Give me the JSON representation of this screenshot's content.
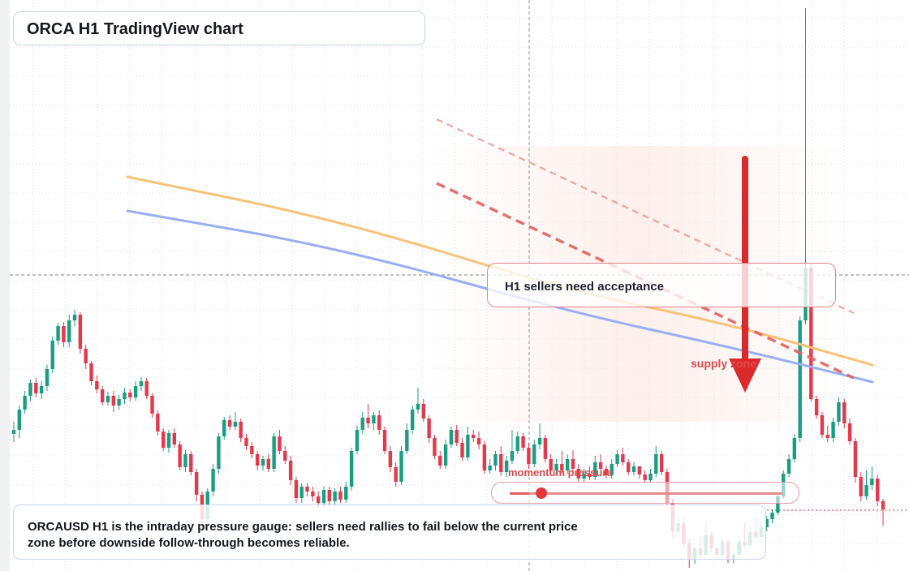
{
  "title": "ORCA H1 TradingView chart",
  "colors": {
    "up": "#1a9e82",
    "down": "#e5384b",
    "ema_fast": "#f7c27a",
    "ema_slow": "#98aff1",
    "resistance": "#e06060",
    "arrow": "#dc2a2a",
    "grid": "#d8dde6"
  },
  "annotations": {
    "acceptance": "H1 sellers need acceptance",
    "supply_zone": "supply zone",
    "momentum": "momentum pressure",
    "note": "ORCAUSD H1 is the intraday pressure gauge: sellers need rallies to fail below the current price zone before downside follow-through becomes reliable."
  },
  "momentum_pressure_level": 0.07,
  "chart_data": {
    "type": "candlestick",
    "symbol": "ORCAUSD",
    "timeframe": "H1",
    "title": "ORCA H1 TradingView chart",
    "xlabel": "",
    "ylabel": "",
    "grid": true,
    "y_range_px_scale_note": "",
    "candles": [
      [
        535,
        530,
        545,
        520
      ],
      [
        530,
        505,
        540,
        500
      ],
      [
        505,
        488,
        510,
        482
      ],
      [
        488,
        472,
        495,
        468
      ],
      [
        472,
        485,
        490,
        466
      ],
      [
        485,
        476,
        492,
        470
      ],
      [
        476,
        455,
        482,
        450
      ],
      [
        455,
        420,
        460,
        415
      ],
      [
        420,
        402,
        425,
        398
      ],
      [
        402,
        422,
        428,
        397
      ],
      [
        422,
        395,
        428,
        388
      ],
      [
        395,
        388,
        402,
        382
      ],
      [
        388,
        430,
        436,
        385
      ],
      [
        430,
        448,
        455,
        425
      ],
      [
        448,
        470,
        475,
        445
      ],
      [
        470,
        480,
        485,
        463
      ],
      [
        480,
        496,
        500,
        476
      ],
      [
        496,
        488,
        500,
        483
      ],
      [
        488,
        500,
        508,
        482
      ],
      [
        500,
        492,
        505,
        487
      ],
      [
        492,
        484,
        498,
        478
      ],
      [
        484,
        490,
        495,
        480
      ],
      [
        490,
        476,
        494,
        470
      ],
      [
        476,
        470,
        482,
        465
      ],
      [
        470,
        488,
        492,
        466
      ],
      [
        488,
        510,
        515,
        485
      ],
      [
        510,
        532,
        537,
        506
      ],
      [
        532,
        552,
        556,
        528
      ],
      [
        552,
        534,
        558,
        530
      ],
      [
        534,
        548,
        552,
        528
      ],
      [
        548,
        576,
        580,
        544
      ],
      [
        576,
        560,
        582,
        555
      ],
      [
        560,
        582,
        586,
        556
      ],
      [
        582,
        610,
        618,
        578
      ],
      [
        610,
        640,
        650,
        606
      ],
      [
        640,
        606,
        645,
        602
      ],
      [
        606,
        578,
        612,
        572
      ],
      [
        578,
        538,
        584,
        534
      ],
      [
        538,
        518,
        542,
        514
      ],
      [
        518,
        526,
        530,
        512
      ],
      [
        526,
        520,
        530,
        508
      ],
      [
        520,
        540,
        545,
        516
      ],
      [
        540,
        550,
        555,
        535
      ],
      [
        550,
        560,
        565,
        545
      ],
      [
        560,
        574,
        580,
        556
      ],
      [
        574,
        566,
        580,
        562
      ],
      [
        566,
        578,
        582,
        560
      ],
      [
        578,
        538,
        582,
        534
      ],
      [
        538,
        556,
        560,
        530
      ],
      [
        556,
        568,
        572,
        550
      ],
      [
        568,
        592,
        598,
        562
      ],
      [
        592,
        614,
        620,
        588
      ],
      [
        614,
        600,
        620,
        596
      ],
      [
        600,
        606,
        612,
        596
      ],
      [
        606,
        612,
        618,
        600
      ],
      [
        612,
        620,
        626,
        606
      ],
      [
        620,
        604,
        626,
        600
      ],
      [
        604,
        618,
        624,
        600
      ],
      [
        618,
        606,
        622,
        602
      ],
      [
        606,
        616,
        620,
        600
      ],
      [
        616,
        600,
        620,
        594
      ],
      [
        600,
        556,
        605,
        552
      ],
      [
        556,
        530,
        560,
        525
      ],
      [
        530,
        515,
        535,
        508
      ],
      [
        515,
        522,
        528,
        498
      ],
      [
        522,
        512,
        530,
        508
      ],
      [
        512,
        530,
        536,
        506
      ],
      [
        530,
        556,
        560,
        526
      ],
      [
        556,
        576,
        582,
        550
      ],
      [
        576,
        594,
        600,
        570
      ],
      [
        594,
        556,
        598,
        550
      ],
      [
        556,
        530,
        560,
        522
      ],
      [
        530,
        505,
        535,
        500
      ],
      [
        505,
        498,
        510,
        478
      ],
      [
        498,
        516,
        520,
        492
      ],
      [
        516,
        540,
        546,
        512
      ],
      [
        540,
        562,
        566,
        536
      ],
      [
        562,
        574,
        578,
        556
      ],
      [
        574,
        548,
        578,
        542
      ],
      [
        548,
        530,
        552,
        526
      ],
      [
        530,
        546,
        550,
        524
      ],
      [
        546,
        564,
        568,
        540
      ],
      [
        564,
        536,
        568,
        526
      ],
      [
        536,
        540,
        545,
        530
      ],
      [
        540,
        548,
        554,
        532
      ],
      [
        548,
        580,
        584,
        544
      ],
      [
        580,
        574,
        584,
        566
      ],
      [
        574,
        560,
        580,
        556
      ],
      [
        560,
        582,
        586,
        550
      ],
      [
        582,
        568,
        588,
        562
      ],
      [
        568,
        556,
        572,
        530
      ],
      [
        556,
        538,
        560,
        532
      ],
      [
        538,
        552,
        556,
        534
      ],
      [
        552,
        572,
        578,
        546
      ],
      [
        572,
        548,
        576,
        542
      ],
      [
        548,
        540,
        554,
        522
      ],
      [
        540,
        566,
        570,
        536
      ],
      [
        566,
        580,
        584,
        560
      ],
      [
        580,
        572,
        586,
        566
      ],
      [
        572,
        580,
        584,
        556
      ],
      [
        580,
        566,
        584,
        560
      ],
      [
        566,
        578,
        582,
        555
      ],
      [
        578,
        590,
        594,
        572
      ],
      [
        590,
        584,
        594,
        578
      ],
      [
        584,
        588,
        592,
        575
      ],
      [
        588,
        570,
        592,
        562
      ],
      [
        570,
        578,
        582,
        560
      ],
      [
        578,
        586,
        590,
        574
      ],
      [
        586,
        572,
        590,
        566
      ],
      [
        572,
        560,
        576,
        555
      ],
      [
        560,
        570,
        574,
        552
      ],
      [
        570,
        582,
        586,
        566
      ],
      [
        582,
        575,
        586,
        570
      ],
      [
        575,
        585,
        590,
        580
      ],
      [
        585,
        592,
        596,
        580
      ],
      [
        592,
        584,
        596,
        578
      ],
      [
        584,
        560,
        588,
        550
      ],
      [
        560,
        582,
        586,
        556
      ],
      [
        582,
        620,
        628,
        578
      ],
      [
        620,
        655,
        665,
        615
      ],
      [
        655,
        645,
        660,
        640
      ],
      [
        645,
        670,
        675,
        640
      ],
      [
        670,
        690,
        700,
        665
      ],
      [
        690,
        676,
        695,
        672
      ],
      [
        676,
        684,
        690,
        660
      ],
      [
        684,
        660,
        688,
        645
      ],
      [
        660,
        676,
        680,
        655
      ],
      [
        676,
        684,
        690,
        675
      ],
      [
        684,
        668,
        688,
        662
      ],
      [
        668,
        690,
        694,
        664
      ],
      [
        690,
        684,
        694,
        680
      ],
      [
        684,
        668,
        690,
        660
      ],
      [
        668,
        672,
        676,
        645
      ],
      [
        672,
        656,
        676,
        650
      ],
      [
        656,
        662,
        666,
        640
      ],
      [
        662,
        650,
        666,
        644
      ],
      [
        650,
        640,
        655,
        636
      ],
      [
        640,
        632,
        645,
        628
      ],
      [
        632,
        612,
        635,
        606
      ],
      [
        612,
        584,
        615,
        580
      ],
      [
        584,
        566,
        588,
        560
      ],
      [
        566,
        540,
        570,
        535
      ],
      [
        540,
        395,
        545,
        390
      ],
      [
        395,
        330,
        400,
        10
      ],
      [
        330,
        492,
        495,
        325
      ],
      [
        492,
        512,
        516,
        488
      ],
      [
        512,
        536,
        540,
        508
      ],
      [
        536,
        540,
        545,
        525
      ],
      [
        540,
        520,
        545,
        515
      ],
      [
        520,
        496,
        525,
        490
      ],
      [
        496,
        522,
        528,
        492
      ],
      [
        522,
        544,
        548,
        516
      ],
      [
        544,
        588,
        595,
        540
      ],
      [
        588,
        612,
        618,
        582
      ],
      [
        612,
        598,
        616,
        580
      ],
      [
        598,
        590,
        604,
        575
      ],
      [
        590,
        618,
        624,
        585
      ],
      [
        618,
        628,
        648,
        615
      ]
    ],
    "ema_fast": [
      [
        157,
        218
      ],
      [
        420,
        272
      ],
      [
        700,
        358
      ],
      [
        900,
        400
      ],
      [
        1075,
        450
      ]
    ],
    "ema_slow": [
      [
        157,
        260
      ],
      [
        420,
        306
      ],
      [
        700,
        384
      ],
      [
        900,
        428
      ],
      [
        1075,
        471
      ]
    ],
    "resistance_lines": [
      {
        "from": [
          538,
          147
        ],
        "to": [
          1052,
          386
        ],
        "style": "dashed-thin",
        "opacity": 0.5
      },
      {
        "from": [
          538,
          226
        ],
        "to": [
          1052,
          466
        ],
        "style": "dashed-thick",
        "opacity": 0.9
      }
    ],
    "supply_zone": {
      "x0": 527,
      "x1": 1050,
      "y0": 180,
      "y1": 520
    },
    "arrow": {
      "x": 918,
      "y_from": 196,
      "y_to": 484
    },
    "current_price_line_y": 339,
    "last_price_line_y": 629,
    "crosshair_x": 652
  }
}
